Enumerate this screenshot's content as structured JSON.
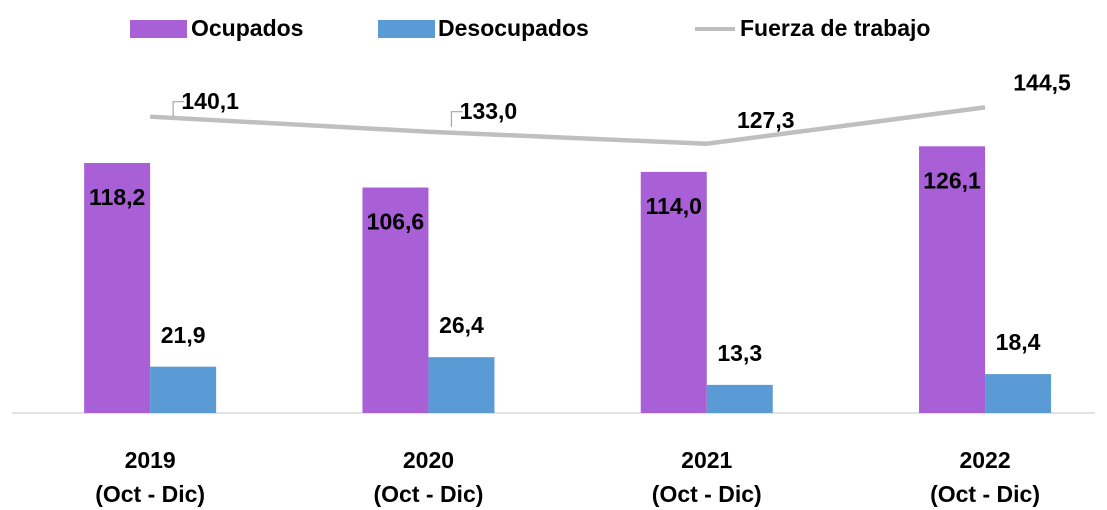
{
  "chart_data": {
    "type": "bar+line",
    "categories": [
      [
        "2019",
        "(Oct - Dic)"
      ],
      [
        "2020",
        "(Oct - Dic)"
      ],
      [
        "2021",
        "(Oct - Dic)"
      ],
      [
        "2022",
        "(Oct - Dic)"
      ]
    ],
    "ylim": [
      0,
      160
    ],
    "series": [
      {
        "name": "Ocupados",
        "type": "bar",
        "color": "#a95fd6",
        "values": [
          118.2,
          106.6,
          114.0,
          126.1
        ],
        "value_labels": [
          "118,2",
          "106,6",
          "114,0",
          "126,1"
        ]
      },
      {
        "name": "Desocupados",
        "type": "bar",
        "color": "#5b9bd5",
        "values": [
          21.9,
          26.4,
          13.3,
          18.4
        ],
        "value_labels": [
          "21,9",
          "26,4",
          "13,3",
          "18,4"
        ]
      },
      {
        "name": "Fuerza de trabajo",
        "type": "line",
        "color": "#bfbfbf",
        "values": [
          140.1,
          133.0,
          127.3,
          144.5
        ],
        "value_labels": [
          "140,1",
          "133,0",
          "127,3",
          "144,5"
        ]
      }
    ],
    "legend": "top"
  }
}
